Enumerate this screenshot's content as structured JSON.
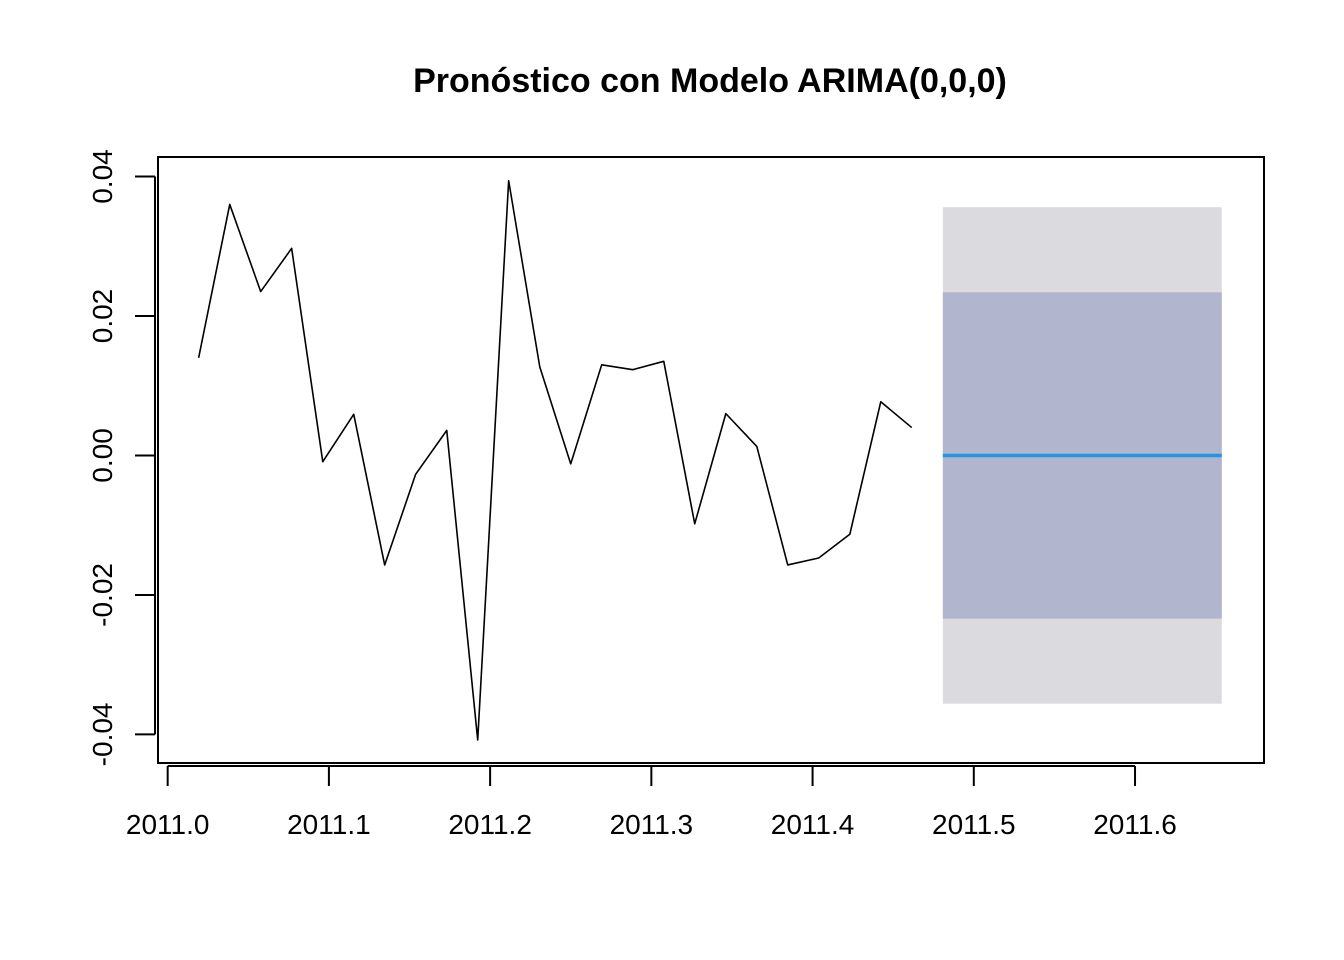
{
  "chart_data": {
    "type": "line",
    "title": "Pronóstico con Modelo ARIMA(0,0,0)",
    "xlabel": "",
    "ylabel": "",
    "xlim": [
      2010.994,
      2011.68
    ],
    "ylim": [
      -0.0441,
      0.0428
    ],
    "x_ticks": [
      2011.0,
      2011.1,
      2011.2,
      2011.3,
      2011.4,
      2011.5,
      2011.6
    ],
    "x_tick_labels": [
      "2011.0",
      "2011.1",
      "2011.2",
      "2011.3",
      "2011.4",
      "2011.5",
      "2011.6"
    ],
    "y_ticks": [
      -0.04,
      -0.02,
      0.0,
      0.02,
      0.04
    ],
    "y_tick_labels": [
      "-0.04",
      "-0.02",
      "0.00",
      "0.02",
      "0.04"
    ],
    "grid": false,
    "legend": "none",
    "series": [
      {
        "kind": "observed",
        "color": "#000000",
        "x": [
          2011.0192,
          2011.0385,
          2011.0577,
          2011.0769,
          2011.0962,
          2011.1154,
          2011.1346,
          2011.1538,
          2011.1731,
          2011.1923,
          2011.2115,
          2011.2308,
          2011.25,
          2011.2692,
          2011.2885,
          2011.3077,
          2011.3269,
          2011.3462,
          2011.3654,
          2011.3846,
          2011.4038,
          2011.4231,
          2011.4423,
          2011.4615
        ],
        "y": [
          0.014,
          0.036,
          0.0235,
          0.0297,
          -0.0009,
          0.0059,
          -0.0157,
          -0.0027,
          0.0036,
          -0.0408,
          0.0394,
          0.0127,
          -0.0012,
          0.013,
          0.0123,
          0.0135,
          -0.0098,
          0.006,
          0.0013,
          -0.0157,
          -0.0147,
          -0.0113,
          0.0077,
          0.004
        ]
      },
      {
        "kind": "forecast-mean",
        "color": "#2297E6",
        "x": [
          2011.4808,
          2011.6538
        ],
        "y": [
          0.0,
          0.0
        ]
      }
    ],
    "intervals": [
      {
        "level": 95,
        "color": "#DBDBDF",
        "x": [
          2011.4808,
          2011.6538
        ],
        "lower": -0.0356,
        "upper": 0.0356
      },
      {
        "level": 80,
        "color": "#B1B5CE",
        "x": [
          2011.4808,
          2011.6538
        ],
        "lower": -0.0234,
        "upper": 0.0234
      }
    ]
  }
}
